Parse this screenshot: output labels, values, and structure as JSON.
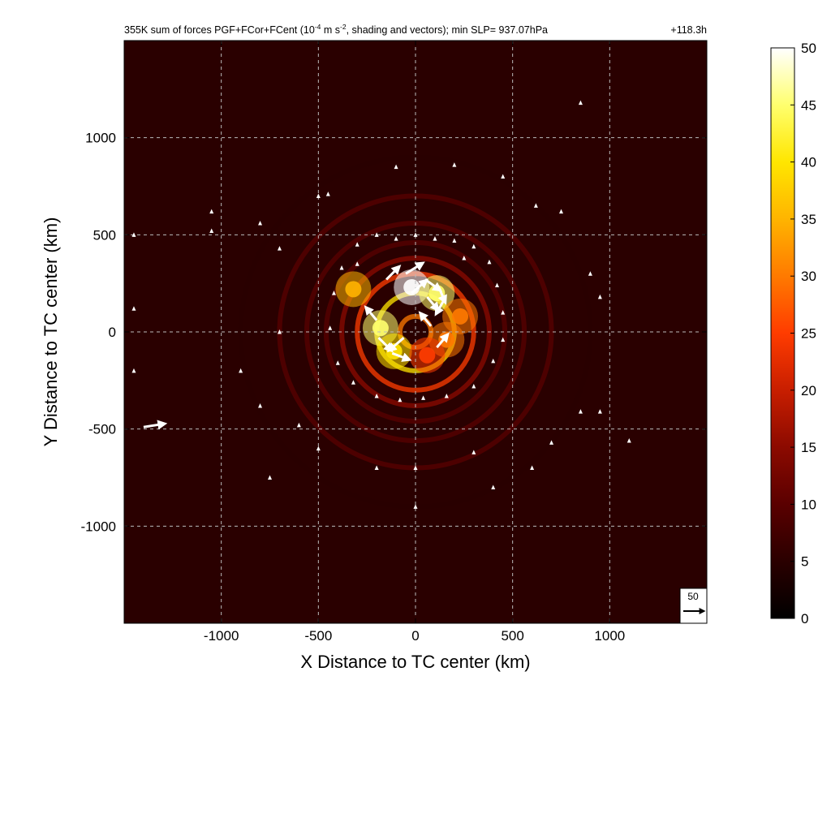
{
  "chart_data": {
    "type": "heatmap",
    "title": {
      "prefix": "355K sum of forces PGF+FCor+FCent (10",
      "exponent1": "-4",
      "middle": " m s",
      "exponent2": "-2",
      "suffix": ", shading and vectors); min SLP= 937.07hPa",
      "time": "+118.3h"
    },
    "xlabel": "X Distance to TC center (km)",
    "ylabel": "Y Distance to TC center (km)",
    "xlim": [
      -1500,
      1500
    ],
    "ylim": [
      -1500,
      1500
    ],
    "xticks": [
      -1000,
      -500,
      0,
      500,
      1000
    ],
    "yticks": [
      -1000,
      -500,
      0,
      500,
      1000
    ],
    "grid": true,
    "colorbar": {
      "range": [
        0,
        50
      ],
      "ticks": [
        0,
        5,
        10,
        15,
        20,
        25,
        30,
        35,
        40,
        45,
        50
      ],
      "colors": [
        "#000000",
        "#2a0000",
        "#5a0000",
        "#8c0a00",
        "#c81e00",
        "#ff3c00",
        "#ff7a00",
        "#ffb400",
        "#ffe600",
        "#ffff6e",
        "#ffffff"
      ]
    },
    "field": {
      "background_value": 6,
      "rings": [
        {
          "radius_km": 80,
          "value": 32
        },
        {
          "radius_km": 200,
          "value": 40
        },
        {
          "radius_km": 300,
          "value": 24
        },
        {
          "radius_km": 380,
          "value": 14
        },
        {
          "radius_km": 460,
          "value": 11
        },
        {
          "radius_km": 560,
          "value": 10
        },
        {
          "radius_km": 700,
          "value": 8
        },
        {
          "radius_km": 900,
          "value": 7
        }
      ],
      "hotspots": [
        {
          "x_km": -20,
          "y_km": 230,
          "value": 50
        },
        {
          "x_km": 110,
          "y_km": 200,
          "value": 46
        },
        {
          "x_km": -180,
          "y_km": 20,
          "value": 46
        },
        {
          "x_km": -110,
          "y_km": -100,
          "value": 42
        },
        {
          "x_km": -320,
          "y_km": 220,
          "value": 36
        },
        {
          "x_km": 160,
          "y_km": -40,
          "value": 30
        },
        {
          "x_km": 60,
          "y_km": -120,
          "value": 24
        },
        {
          "x_km": 230,
          "y_km": 80,
          "value": 28
        }
      ]
    },
    "vectors": {
      "reference": {
        "label": "50",
        "magnitude": 50
      },
      "samples": [
        {
          "x_km": -150,
          "y_km": 270,
          "u": 30,
          "v": 30
        },
        {
          "x_km": -50,
          "y_km": 300,
          "u": 40,
          "v": 25
        },
        {
          "x_km": 50,
          "y_km": 270,
          "u": 35,
          "v": -25
        },
        {
          "x_km": 120,
          "y_km": 230,
          "u": 15,
          "v": -35
        },
        {
          "x_km": 150,
          "y_km": 170,
          "u": -20,
          "v": -35
        },
        {
          "x_km": -20,
          "y_km": 200,
          "u": 35,
          "v": 30
        },
        {
          "x_km": 60,
          "y_km": 180,
          "u": 25,
          "v": -30
        },
        {
          "x_km": -200,
          "y_km": 60,
          "u": -25,
          "v": 30
        },
        {
          "x_km": -190,
          "y_km": -30,
          "u": 30,
          "v": -30
        },
        {
          "x_km": -120,
          "y_km": -110,
          "u": 40,
          "v": -15
        },
        {
          "x_km": -60,
          "y_km": -30,
          "u": -35,
          "v": -30
        },
        {
          "x_km": 110,
          "y_km": -80,
          "u": 25,
          "v": 30
        },
        {
          "x_km": 80,
          "y_km": 30,
          "u": -25,
          "v": 30
        },
        {
          "x_km": -1400,
          "y_km": -490,
          "u": 50,
          "v": 8
        }
      ],
      "small_samples": [
        {
          "x_km": -300,
          "y_km": 450
        },
        {
          "x_km": -200,
          "y_km": 500
        },
        {
          "x_km": -100,
          "y_km": 480
        },
        {
          "x_km": 0,
          "y_km": 500
        },
        {
          "x_km": 100,
          "y_km": 480
        },
        {
          "x_km": 200,
          "y_km": 470
        },
        {
          "x_km": 300,
          "y_km": 440
        },
        {
          "x_km": 380,
          "y_km": 360
        },
        {
          "x_km": -380,
          "y_km": 330
        },
        {
          "x_km": -420,
          "y_km": 200
        },
        {
          "x_km": 420,
          "y_km": 240
        },
        {
          "x_km": 450,
          "y_km": 100
        },
        {
          "x_km": -440,
          "y_km": 20
        },
        {
          "x_km": 450,
          "y_km": -40
        },
        {
          "x_km": -400,
          "y_km": -160
        },
        {
          "x_km": 400,
          "y_km": -150
        },
        {
          "x_km": -320,
          "y_km": -260
        },
        {
          "x_km": 300,
          "y_km": -280
        },
        {
          "x_km": -200,
          "y_km": -330
        },
        {
          "x_km": -80,
          "y_km": -350
        },
        {
          "x_km": 40,
          "y_km": -340
        },
        {
          "x_km": 160,
          "y_km": -330
        },
        {
          "x_km": -300,
          "y_km": 350
        },
        {
          "x_km": 250,
          "y_km": 380
        },
        {
          "x_km": -1050,
          "y_km": 620
        },
        {
          "x_km": -1050,
          "y_km": 520
        },
        {
          "x_km": -800,
          "y_km": 560
        },
        {
          "x_km": -700,
          "y_km": 430
        },
        {
          "x_km": 620,
          "y_km": 650
        },
        {
          "x_km": 750,
          "y_km": 620
        },
        {
          "x_km": 900,
          "y_km": 300
        },
        {
          "x_km": 950,
          "y_km": 180
        },
        {
          "x_km": -700,
          "y_km": 0
        },
        {
          "x_km": -900,
          "y_km": -200
        },
        {
          "x_km": -800,
          "y_km": -380
        },
        {
          "x_km": -600,
          "y_km": -480
        },
        {
          "x_km": -500,
          "y_km": -600
        },
        {
          "x_km": -200,
          "y_km": -700
        },
        {
          "x_km": 0,
          "y_km": -700
        },
        {
          "x_km": 300,
          "y_km": -620
        },
        {
          "x_km": 600,
          "y_km": -700
        },
        {
          "x_km": 700,
          "y_km": -570
        },
        {
          "x_km": 950,
          "y_km": -410
        },
        {
          "x_km": 1100,
          "y_km": -560
        },
        {
          "x_km": 850,
          "y_km": -410
        },
        {
          "x_km": -1450,
          "y_km": 500
        },
        {
          "x_km": -1450,
          "y_km": 120
        },
        {
          "x_km": -1450,
          "y_km": -200
        },
        {
          "x_km": -100,
          "y_km": 850
        },
        {
          "x_km": 200,
          "y_km": 860
        },
        {
          "x_km": 450,
          "y_km": 800
        },
        {
          "x_km": 850,
          "y_km": 1180
        },
        {
          "x_km": -450,
          "y_km": 710
        },
        {
          "x_km": -500,
          "y_km": 700
        },
        {
          "x_km": 0,
          "y_km": -900
        },
        {
          "x_km": 400,
          "y_km": -800
        },
        {
          "x_km": -750,
          "y_km": -750
        }
      ]
    }
  }
}
